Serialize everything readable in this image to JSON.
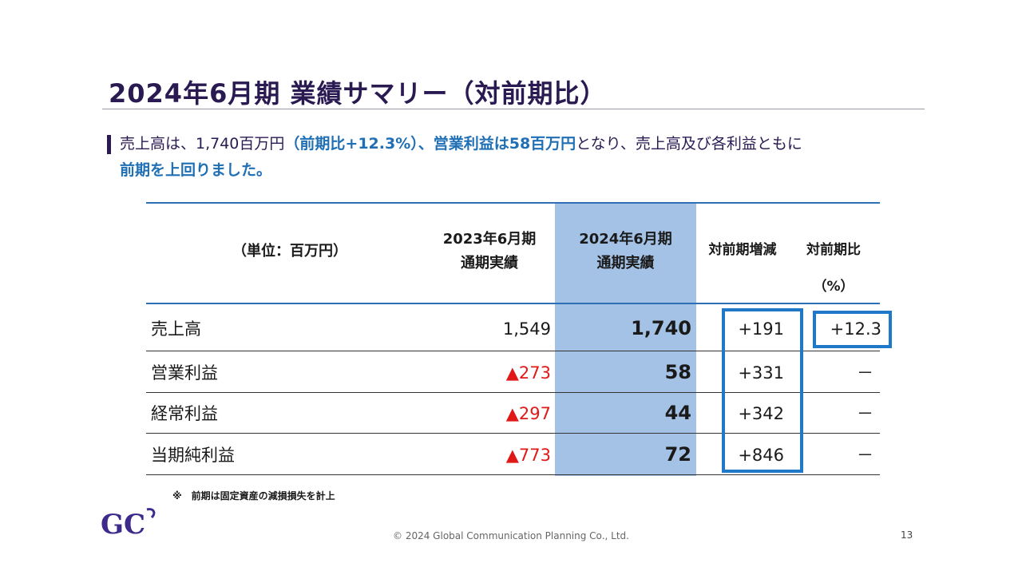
{
  "slide": {
    "title": "2024年6月期 業績サマリー（対前期比）",
    "lead_parts": [
      {
        "text": "売上高は、1,740百万円",
        "hl": false
      },
      {
        "text": "（前期比+12.3%）、営業利益は58百万円",
        "hl": true
      },
      {
        "text": "となり、売上高及び各利益ともに",
        "hl": false
      },
      {
        "text": "前期を上回りました。",
        "hl": true
      }
    ]
  },
  "table": {
    "unit_header": "（単位：百万円）",
    "col_prev": [
      "2023年6月期",
      "通期実績"
    ],
    "col_cur": [
      "2024年6月期",
      "通期実績"
    ],
    "col_diff": "対前期増減",
    "col_ratio": [
      "対前期比",
      "（%）"
    ],
    "rows": [
      {
        "label": "売上高",
        "prev": "1,549",
        "prev_negative": false,
        "cur": "1,740",
        "diff": "+191",
        "ratio": "+12.3"
      },
      {
        "label": "営業利益",
        "prev": "▲273",
        "prev_negative": true,
        "cur": "58",
        "diff": "+331",
        "ratio": "－"
      },
      {
        "label": "経常利益",
        "prev": "▲297",
        "prev_negative": true,
        "cur": "44",
        "diff": "+342",
        "ratio": "－"
      },
      {
        "label": "当期純利益",
        "prev": "▲773",
        "prev_negative": true,
        "cur": "72",
        "diff": "+846",
        "ratio": "－"
      }
    ]
  },
  "footnote": "※　前期は固定資産の減損損失を計上",
  "footer": {
    "logo_text": "GC",
    "copyright": "© 2024 Global Communication Planning Co., Ltd.",
    "page_number": "13"
  },
  "colors": {
    "title": "#2a1a52",
    "accent_blue": "#1f6fb5",
    "highlight_column": "#a4c2e6",
    "negative_red": "#e01818",
    "box_border": "#1f78c8"
  }
}
